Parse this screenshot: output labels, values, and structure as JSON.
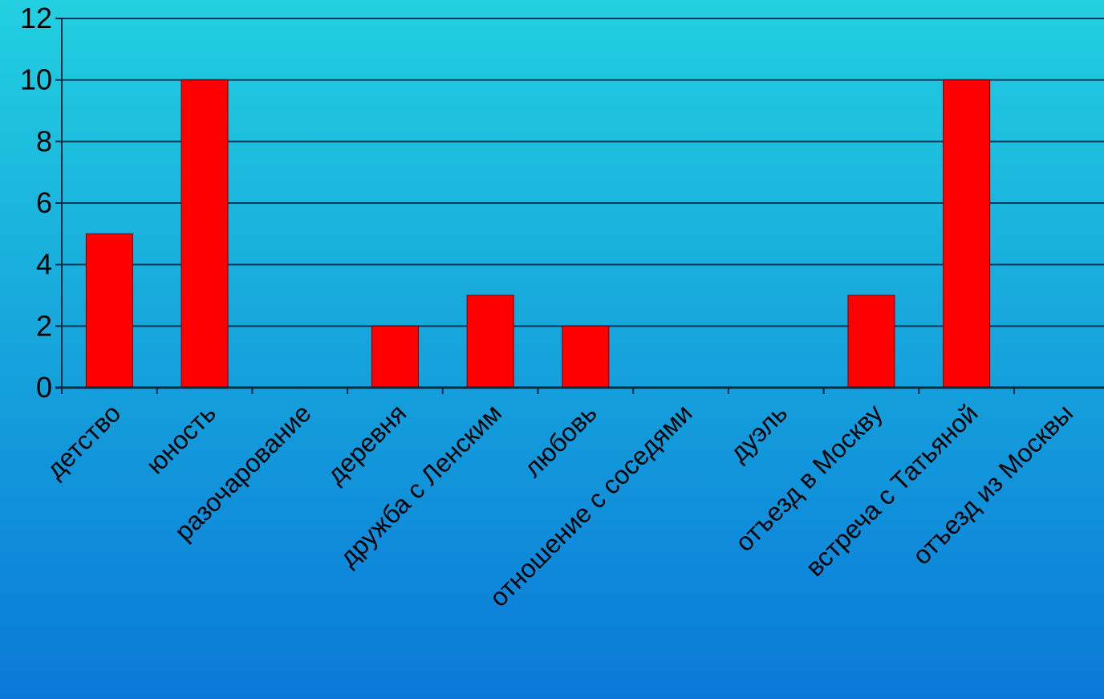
{
  "chart_data": {
    "type": "bar",
    "categories": [
      "детство",
      "юность",
      "разочарование",
      "деревня",
      "дружба с Ленским",
      "любовь",
      "отношение с соседями",
      "дуэль",
      "отъезд в Москву",
      "встреча с Татьяной",
      "отъезд из Москвы"
    ],
    "values": [
      5,
      10,
      0,
      2,
      3,
      2,
      0,
      0,
      3,
      10,
      0
    ],
    "ylim": [
      0,
      12
    ],
    "yticks": [
      0,
      2,
      4,
      6,
      8,
      10,
      12
    ],
    "grid": true,
    "legend": "none",
    "colors": {
      "bar": "#ff0000",
      "bar_edge": "#7a0000",
      "grid": "#0a3a55",
      "axis": "#0a2a40",
      "text": "#000000",
      "background_top": "#22d0e0",
      "background_bottom": "#0a78d8"
    }
  }
}
